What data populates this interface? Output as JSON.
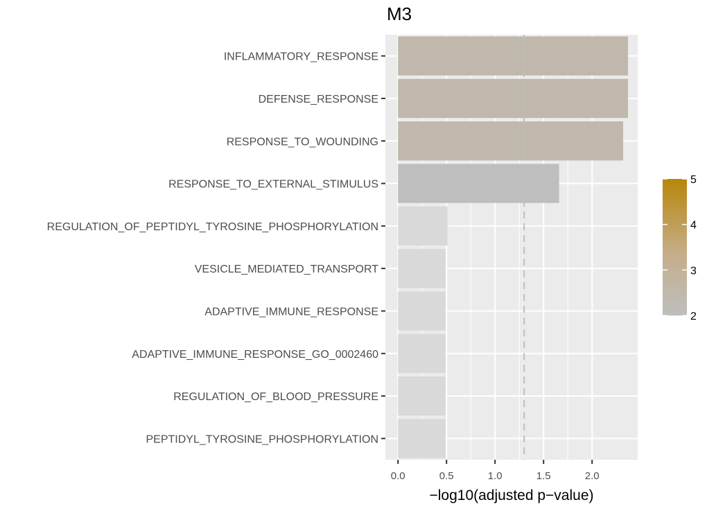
{
  "chart_data": {
    "type": "bar",
    "orientation": "horizontal",
    "title": "M3",
    "xlabel": "−log10(adjusted p−value)",
    "ylabel": "",
    "categories": [
      "INFLAMMATORY_RESPONSE",
      "DEFENSE_RESPONSE",
      "RESPONSE_TO_WOUNDING",
      "RESPONSE_TO_EXTERNAL_STIMULUS",
      "REGULATION_OF_PEPTIDYL_TYROSINE_PHOSPHORYLATION",
      "VESICLE_MEDIATED_TRANSPORT",
      "ADAPTIVE_IMMUNE_RESPONSE",
      "ADAPTIVE_IMMUNE_RESPONSE_GO_0002460",
      "REGULATION_OF_BLOOD_PRESSURE",
      "PEPTIDYL_TYROSINE_PHOSPHORYLATION"
    ],
    "values": [
      2.37,
      2.37,
      2.32,
      1.66,
      0.51,
      0.49,
      0.49,
      0.49,
      0.49,
      0.49
    ],
    "fill_colors": [
      "#c0b8ac",
      "#c0b8ac",
      "#c0b8ac",
      "#bebebe",
      "#d9d9d9",
      "#d9d9d9",
      "#d9d9d9",
      "#d9d9d9",
      "#d9d9d9",
      "#d9d9d9"
    ],
    "xlim": [
      -0.13,
      2.47
    ],
    "xticks": [
      0.0,
      0.5,
      1.0,
      1.5,
      2.0
    ],
    "xtick_labels": [
      "0.0",
      "0.5",
      "1.0",
      "1.5",
      "2.0"
    ],
    "reference_line": {
      "x": 1.3,
      "style": "dashed",
      "color": "#bebebe"
    },
    "grid": true,
    "panel_background": "#ebebeb",
    "legend": {
      "placement": "right",
      "type": "colorbar",
      "min": 2,
      "max": 5,
      "ticks": [
        2,
        3,
        4,
        5
      ],
      "tick_labels": [
        "2",
        "3",
        "4",
        "5"
      ],
      "low_color": "#bebebe",
      "high_color": "#b8860b"
    }
  }
}
